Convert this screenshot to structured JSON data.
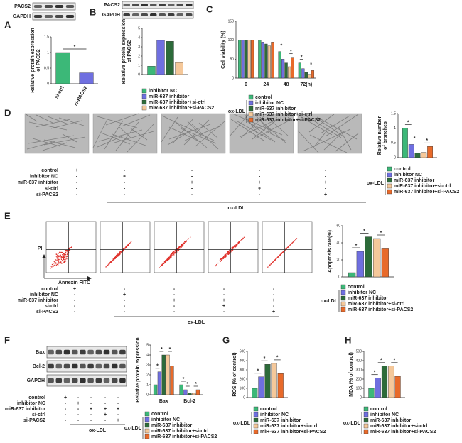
{
  "panel_letters": [
    "A",
    "B",
    "C",
    "D",
    "E",
    "F",
    "G",
    "H"
  ],
  "blots": {
    "A": [
      "PACS2",
      "GAPDH"
    ],
    "B": [
      "PACS2",
      "GAPDH"
    ],
    "F": [
      "Bax",
      "Bcl-2",
      "GAPDH"
    ]
  },
  "flow_axes": {
    "y": "PI",
    "x": "Annexin FITC"
  },
  "treatment_tables": [
    {
      "rows": [
        {
          "name": "control",
          "cells": [
            "+",
            "-",
            "-",
            "-",
            "-"
          ]
        },
        {
          "name": "inhibitor NC",
          "cells": [
            "-",
            "+",
            "-",
            "-",
            "-"
          ]
        },
        {
          "name": "miR-637 inhibitor",
          "cells": [
            "-",
            "-",
            "+",
            "+",
            "+"
          ]
        },
        {
          "name": "si-ctrl",
          "cells": [
            "-",
            "-",
            "-",
            "+",
            "-"
          ]
        },
        {
          "name": "si-PACS2",
          "cells": [
            "-",
            "-",
            "-",
            "-",
            "+"
          ]
        }
      ],
      "group": "ox-LDL"
    },
    {
      "rows": [
        {
          "name": "control",
          "cells": [
            "+",
            "-",
            "-",
            "-",
            "-"
          ]
        },
        {
          "name": "inhibitor NC",
          "cells": [
            "-",
            "+",
            "-",
            "-",
            "-"
          ]
        },
        {
          "name": "miR-637 inhibitor",
          "cells": [
            "-",
            "-",
            "+",
            "+",
            "+"
          ]
        },
        {
          "name": "si-ctrl",
          "cells": [
            "-",
            "-",
            "-",
            "+",
            "-"
          ]
        },
        {
          "name": "si-PACS2",
          "cells": [
            "-",
            "-",
            "-",
            "-",
            "+"
          ]
        }
      ],
      "group": "ox-LDL"
    },
    {
      "rows": [
        {
          "name": "control",
          "cells": [
            "+",
            "-",
            "-",
            "-",
            "-"
          ]
        },
        {
          "name": "inhibitor NC",
          "cells": [
            "-",
            "+",
            "-",
            "-",
            "-"
          ]
        },
        {
          "name": "miR-637 inhibitor",
          "cells": [
            "-",
            "-",
            "+",
            "+",
            "+"
          ]
        },
        {
          "name": "si-ctrl",
          "cells": [
            "-",
            "-",
            "-",
            "+",
            "-"
          ]
        },
        {
          "name": "si-PACS2",
          "cells": [
            "-",
            "-",
            "-",
            "-",
            "+"
          ]
        }
      ],
      "group": "ox-LDL"
    }
  ],
  "chart_data": [
    {
      "type": "bar",
      "ylabel": [
        "Relative protein expression",
        "of PACS2"
      ],
      "categories": [
        "si-ctrl",
        "si-PACS2"
      ],
      "values": [
        1.0,
        0.35
      ],
      "colors": [
        "#3cb878",
        "#6f6fe0"
      ],
      "ylim": [
        0,
        1.5
      ],
      "yticks": [
        0,
        0.5,
        1,
        1.5
      ],
      "annotations": [
        "*"
      ]
    },
    {
      "type": "bar",
      "ylabel": [
        "Relative protein expression",
        "of PACS2"
      ],
      "ylim": [
        0,
        5
      ],
      "yticks": [
        0,
        1,
        2,
        3,
        4,
        5
      ],
      "series": [
        {
          "name": "inhibitor NC",
          "color": "#3cb878",
          "values": [
            0.9
          ]
        },
        {
          "name": "miR-637 inhibitor",
          "color": "#6f6fe0",
          "values": [
            3.7
          ]
        },
        {
          "name": "miR-637 inhibitor+si-ctrl",
          "color": "#2d6b3a",
          "values": [
            3.6
          ]
        },
        {
          "name": "miR-637 inhibitor+si-PACS2",
          "color": "#f5c89a",
          "values": [
            1.3
          ]
        }
      ]
    },
    {
      "type": "bar",
      "ylabel": [
        "Cell viability (%)"
      ],
      "categories": [
        "0",
        "24",
        "48",
        "72(h)"
      ],
      "ylim": [
        0,
        150
      ],
      "yticks": [
        0,
        50,
        100,
        150
      ],
      "legend_group": "ox-LDL",
      "annotations": [
        "*",
        "*",
        "*",
        "*"
      ],
      "series": [
        {
          "name": "control",
          "color": "#3cb878",
          "values": [
            100,
            100,
            70,
            40
          ]
        },
        {
          "name": "inhibitor NC",
          "color": "#6f6fe0",
          "values": [
            100,
            95,
            50,
            25
          ]
        },
        {
          "name": "miR-637 inhibitor",
          "color": "#2d6b3a",
          "values": [
            100,
            90,
            40,
            15
          ]
        },
        {
          "name": "miR-637 inhibitor+si-ctrl",
          "color": "#f5c89a",
          "values": [
            100,
            85,
            30,
            10
          ]
        },
        {
          "name": "miR-637 inhibitor+si-PACS2",
          "color": "#e86a2a",
          "values": [
            100,
            95,
            55,
            20
          ]
        }
      ]
    },
    {
      "type": "bar",
      "ylabel": [
        "Relative number",
        "of branches"
      ],
      "ylim": [
        0,
        1.5
      ],
      "yticks": [
        0,
        0.5,
        1,
        1.5
      ],
      "legend_group": "ox-LDL",
      "annotations": [
        "*",
        "*",
        "*"
      ],
      "series": [
        {
          "name": "control",
          "color": "#3cb878",
          "values": [
            1.0
          ]
        },
        {
          "name": "inhibitor NC",
          "color": "#6f6fe0",
          "values": [
            0.45
          ]
        },
        {
          "name": "miR-637 inhibitor",
          "color": "#2d6b3a",
          "values": [
            0.15
          ]
        },
        {
          "name": "miR-637 inhibitor+si-ctrl",
          "color": "#f5c89a",
          "values": [
            0.18
          ]
        },
        {
          "name": "miR-637 inhibitor+si-PACS2",
          "color": "#e86a2a",
          "values": [
            0.38
          ]
        }
      ]
    },
    {
      "type": "bar",
      "ylabel": [
        "Apoptosis rate(%)"
      ],
      "ylim": [
        0,
        60
      ],
      "yticks": [
        0,
        20,
        40,
        60
      ],
      "legend_group": "ox-LDL",
      "annotations": [
        "*",
        "*",
        "*"
      ],
      "series": [
        {
          "name": "control",
          "color": "#3cb878",
          "values": [
            5
          ]
        },
        {
          "name": "inhibitor NC",
          "color": "#6f6fe0",
          "values": [
            30
          ]
        },
        {
          "name": "miR-637 inhibitor",
          "color": "#2d6b3a",
          "values": [
            47
          ]
        },
        {
          "name": "miR-637 inhibitor+si-ctrl",
          "color": "#f5c89a",
          "values": [
            45
          ]
        },
        {
          "name": "miR-637 inhibitor+si-PACS2",
          "color": "#e86a2a",
          "values": [
            33
          ]
        }
      ]
    },
    {
      "type": "bar",
      "ylabel": [
        "Relative protein expression"
      ],
      "categories": [
        "Bax",
        "Bcl-2"
      ],
      "ylim": [
        0,
        5
      ],
      "yticks": [
        0,
        1,
        2,
        3,
        4,
        5
      ],
      "legend_group": "ox-LDL",
      "annotations": [
        "*",
        "*",
        "*",
        "*",
        "*",
        "*"
      ],
      "series": [
        {
          "name": "control",
          "color": "#3cb878",
          "values": [
            1.0,
            1.0
          ]
        },
        {
          "name": "inhibitor NC",
          "color": "#6f6fe0",
          "values": [
            2.3,
            0.5
          ]
        },
        {
          "name": "miR-637 inhibitor",
          "color": "#2d6b3a",
          "values": [
            4.0,
            0.2
          ]
        },
        {
          "name": "miR-637 inhibitor+si-ctrl",
          "color": "#f5c89a",
          "values": [
            4.0,
            0.15
          ]
        },
        {
          "name": "miR-637 inhibitor+si-PACS2",
          "color": "#e86a2a",
          "values": [
            2.9,
            0.5
          ]
        }
      ]
    },
    {
      "type": "bar",
      "ylabel": [
        "ROS (% of control)"
      ],
      "ylim": [
        0,
        500
      ],
      "yticks": [
        0,
        100,
        200,
        300,
        400,
        500
      ],
      "legend_group": "ox-LDL",
      "annotations": [
        "*",
        "*",
        "*"
      ],
      "series": [
        {
          "name": "control",
          "color": "#3cb878",
          "values": [
            100
          ]
        },
        {
          "name": "inhibitor NC",
          "color": "#6f6fe0",
          "values": [
            225
          ]
        },
        {
          "name": "miR-637 inhibitor",
          "color": "#2d6b3a",
          "values": [
            360
          ]
        },
        {
          "name": "miR-637 inhibitor+si-ctrl",
          "color": "#f5c89a",
          "values": [
            370
          ]
        },
        {
          "name": "miR-637 inhibitor+si-PACS2",
          "color": "#e86a2a",
          "values": [
            260
          ]
        }
      ]
    },
    {
      "type": "bar",
      "ylabel": [
        "MDA (% of control)"
      ],
      "ylim": [
        0,
        500
      ],
      "yticks": [
        0,
        100,
        200,
        300,
        400,
        500
      ],
      "legend_group": "ox-LDL",
      "annotations": [
        "*",
        "*",
        "*"
      ],
      "series": [
        {
          "name": "control",
          "color": "#3cb878",
          "values": [
            100
          ]
        },
        {
          "name": "inhibitor NC",
          "color": "#6f6fe0",
          "values": [
            210
          ]
        },
        {
          "name": "miR-637 inhibitor",
          "color": "#2d6b3a",
          "values": [
            340
          ]
        },
        {
          "name": "miR-637 inhibitor+si-ctrl",
          "color": "#f5c89a",
          "values": [
            340
          ]
        },
        {
          "name": "miR-637 inhibitor+si-PACS2",
          "color": "#e86a2a",
          "values": [
            230
          ]
        }
      ]
    }
  ]
}
